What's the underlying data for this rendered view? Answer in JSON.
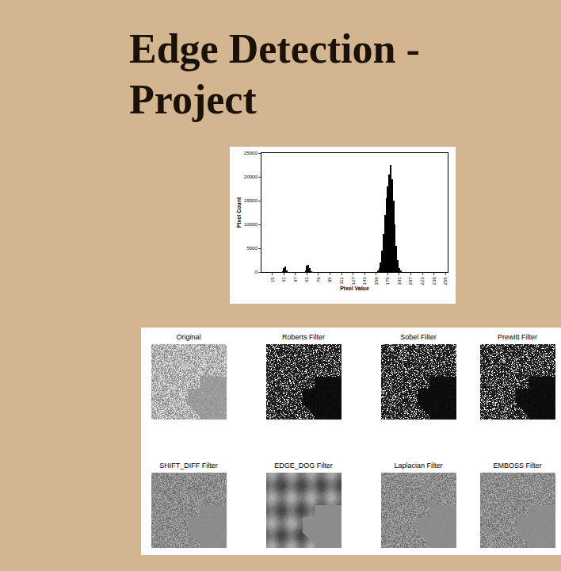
{
  "slide": {
    "title": "Edge Detection - Project"
  },
  "chart_data": {
    "type": "histogram",
    "xlabel": "Pixel Value",
    "ylabel": "Pixel Count",
    "color": "#000000",
    "bins": [
      0,
      2,
      4,
      6,
      8,
      10,
      12,
      14,
      16,
      18,
      20,
      22,
      24,
      26,
      28,
      30,
      32,
      34,
      36,
      38,
      40,
      42,
      44,
      46,
      48,
      50,
      52,
      54,
      56,
      58,
      60,
      62,
      64,
      66,
      68,
      70,
      72,
      74,
      76,
      78,
      80,
      82,
      84,
      86,
      88,
      90,
      92,
      94,
      96,
      98,
      100,
      102,
      104,
      106,
      108,
      110,
      112,
      114,
      116,
      118,
      120,
      122,
      124,
      126,
      128,
      130,
      132,
      134,
      136,
      138,
      140,
      142,
      144,
      146,
      148,
      150,
      152,
      154,
      156,
      158,
      160,
      162,
      164,
      166,
      168,
      170,
      172,
      174,
      176,
      178,
      180,
      182,
      184,
      186,
      188,
      190,
      192,
      194,
      196,
      198,
      200,
      202,
      204,
      206,
      208,
      210,
      212,
      214,
      216,
      218,
      220,
      222,
      224,
      226,
      228,
      230,
      232,
      234,
      236,
      238,
      240,
      242,
      244,
      246,
      248,
      250,
      252,
      254,
      256
    ],
    "counts": [
      0,
      0,
      0,
      0,
      0,
      0,
      0,
      0,
      0,
      0,
      0,
      0,
      0,
      0,
      200,
      900,
      1100,
      300,
      0,
      0,
      0,
      0,
      0,
      0,
      0,
      0,
      0,
      0,
      0,
      0,
      300,
      1300,
      1500,
      900,
      200,
      0,
      0,
      0,
      0,
      0,
      0,
      0,
      0,
      0,
      0,
      0,
      0,
      0,
      0,
      0,
      0,
      0,
      0,
      0,
      0,
      0,
      0,
      0,
      0,
      0,
      0,
      0,
      0,
      0,
      0,
      0,
      0,
      0,
      0,
      0,
      0,
      0,
      0,
      0,
      0,
      0,
      0,
      0,
      0,
      0,
      300,
      800,
      2000,
      4500,
      8000,
      12000,
      15500,
      18000,
      20500,
      22500,
      19500,
      15000,
      10000,
      5500,
      2500,
      900,
      300,
      0,
      0,
      0,
      0,
      0,
      0,
      0,
      0,
      0,
      0,
      0,
      0,
      0,
      0,
      0,
      0,
      0,
      0,
      0,
      0,
      0,
      0,
      0,
      0,
      0,
      0,
      0,
      0,
      0,
      0,
      0
    ],
    "xlim": [
      0,
      258
    ],
    "xticks": [
      15,
      31,
      47,
      63,
      79,
      95,
      111,
      127,
      143,
      159,
      175,
      191,
      207,
      223,
      239,
      255
    ],
    "ylim": [
      0,
      25000
    ],
    "yticks": [
      0,
      5000,
      10000,
      15000,
      20000,
      25000
    ],
    "grid": false
  },
  "image_grid": {
    "panels": [
      "Original",
      "Roberts Filter",
      "Sobel Filter",
      "Prewitt Filter",
      "SHIFT_DIFF Filter",
      "EDGE_DOG Filter",
      "Laplacian Filter",
      "EMBOSS Filter"
    ]
  }
}
